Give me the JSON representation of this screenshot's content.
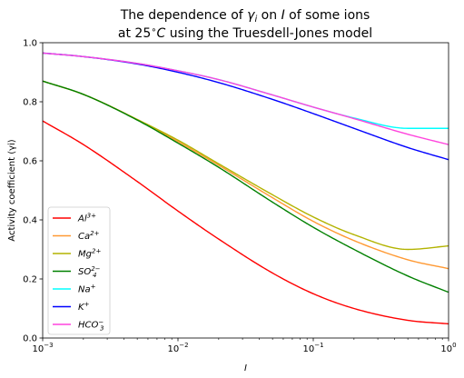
{
  "chart_data": {
    "type": "line",
    "title_line1": "The dependence of γi on I of some ions",
    "title_line2": "at 25°C using the Truesdell-Jones model",
    "xlabel": "I",
    "ylabel": "Activity coefficient (γi)",
    "xscale": "log",
    "xlim": [
      0.001,
      1
    ],
    "ylim": [
      0.0,
      1.0
    ],
    "xticks": [
      {
        "value": 0.001,
        "label": "10−3"
      },
      {
        "value": 0.01,
        "label": "10−2"
      },
      {
        "value": 0.1,
        "label": "10−1"
      },
      {
        "value": 1,
        "label": "100"
      }
    ],
    "yticks": [
      {
        "value": 0.0,
        "label": "0.0"
      },
      {
        "value": 0.2,
        "label": "0.2"
      },
      {
        "value": 0.4,
        "label": "0.4"
      },
      {
        "value": 0.6,
        "label": "0.6"
      },
      {
        "value": 0.8,
        "label": "0.8"
      },
      {
        "value": 1.0,
        "label": "1.0"
      }
    ],
    "grid": false,
    "legend_position": "lower-left",
    "x": [
      0.001,
      0.002,
      0.005,
      0.01,
      0.02,
      0.05,
      0.1,
      0.2,
      0.5,
      1.0
    ],
    "series": [
      {
        "name": "Al3+",
        "color": "#ff0000",
        "values": [
          0.735,
          0.655,
          0.53,
          0.43,
          0.335,
          0.22,
          0.15,
          0.1,
          0.06,
          0.048
        ]
      },
      {
        "name": "Ca2+",
        "color": "#ff9933",
        "values": [
          0.87,
          0.825,
          0.74,
          0.665,
          0.585,
          0.475,
          0.395,
          0.33,
          0.265,
          0.235
        ]
      },
      {
        "name": "Mg2+",
        "color": "#b3b300",
        "values": [
          0.87,
          0.825,
          0.74,
          0.67,
          0.59,
          0.485,
          0.41,
          0.35,
          0.3,
          0.312
        ]
      },
      {
        "name": "SO42−",
        "color": "#008000",
        "values": [
          0.87,
          0.825,
          0.738,
          0.66,
          0.578,
          0.46,
          0.375,
          0.3,
          0.21,
          0.155
        ]
      },
      {
        "name": "Na+",
        "color": "#00ffff",
        "values": [
          0.965,
          0.953,
          0.93,
          0.905,
          0.875,
          0.823,
          0.782,
          0.745,
          0.71,
          0.71
        ]
      },
      {
        "name": "K+",
        "color": "#0000ff",
        "values": [
          0.965,
          0.953,
          0.928,
          0.9,
          0.865,
          0.808,
          0.76,
          0.71,
          0.645,
          0.604
        ]
      },
      {
        "name": "HCO3−",
        "color": "#ff44dd",
        "values": [
          0.965,
          0.953,
          0.93,
          0.905,
          0.875,
          0.823,
          0.782,
          0.743,
          0.69,
          0.655
        ]
      }
    ]
  }
}
